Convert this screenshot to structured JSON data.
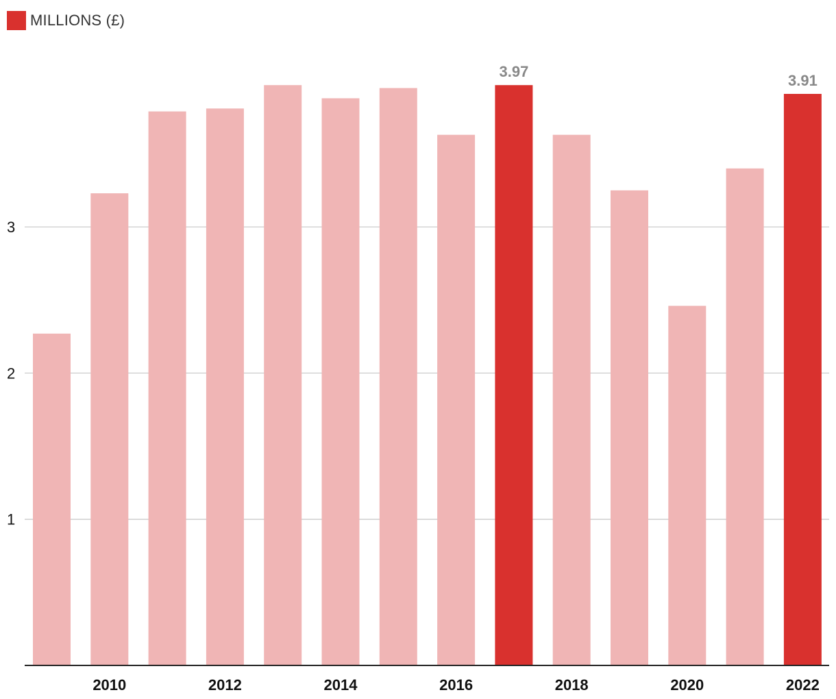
{
  "chart_data": {
    "type": "bar",
    "legend": {
      "label": "MILLIONS (£)",
      "color": "#d9312e"
    },
    "categories": [
      2009,
      2010,
      2011,
      2012,
      2013,
      2014,
      2015,
      2016,
      2017,
      2018,
      2019,
      2020,
      2021,
      2022
    ],
    "values": [
      2.27,
      3.23,
      3.79,
      3.81,
      3.97,
      3.88,
      3.95,
      3.63,
      3.97,
      3.63,
      3.25,
      2.46,
      3.4,
      3.91
    ],
    "highlighted": [
      false,
      false,
      false,
      false,
      false,
      false,
      false,
      false,
      true,
      false,
      false,
      false,
      false,
      true
    ],
    "data_labels": [
      "",
      "",
      "",
      "",
      "",
      "",
      "",
      "",
      "3.97",
      "",
      "",
      "",
      "",
      "3.91"
    ],
    "x_tick_labels": [
      "",
      "2010",
      "",
      "2012",
      "",
      "2014",
      "",
      "2016",
      "",
      "2018",
      "",
      "2020",
      "",
      "2022"
    ],
    "y_ticks": [
      1,
      2,
      3
    ],
    "ylim": [
      0,
      4.4
    ],
    "grid": true,
    "colors": {
      "bar": "#f0b5b5",
      "highlight": "#d9312e",
      "grid": "#cccccc",
      "axis": "#222222"
    }
  }
}
